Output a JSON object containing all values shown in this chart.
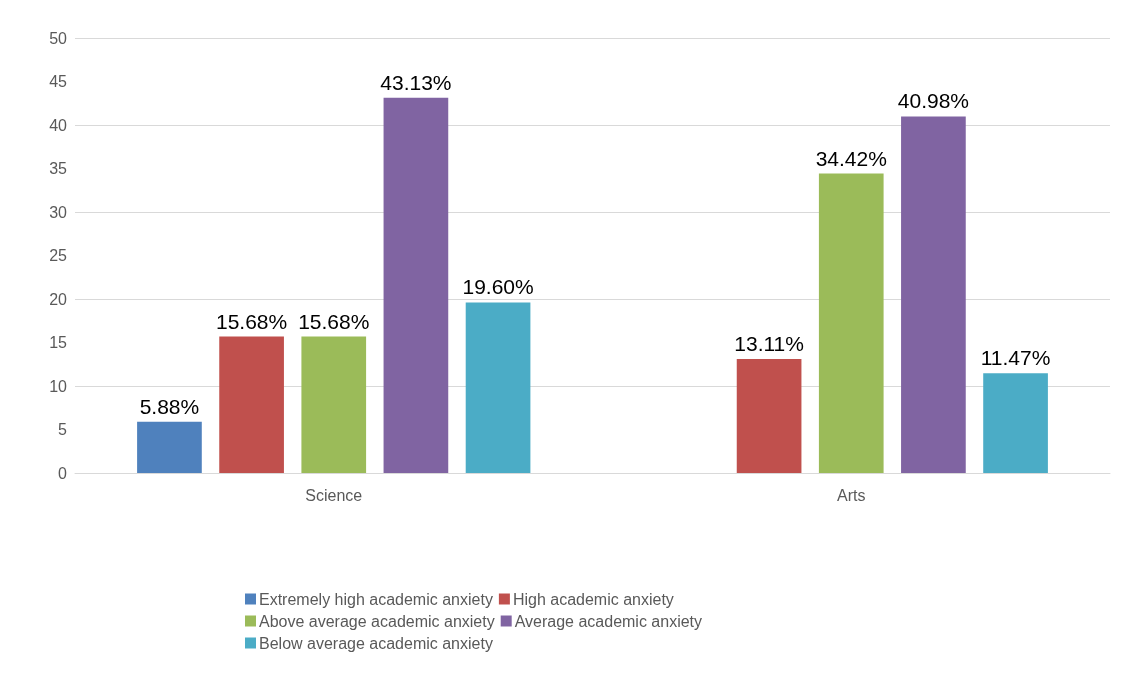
{
  "chart_data": {
    "type": "bar",
    "categories": [
      "Science",
      "Arts"
    ],
    "series": [
      {
        "name": "Extremely high academic anxiety",
        "color": "#4f81bd",
        "values": [
          5.88,
          null
        ],
        "value_labels": [
          "5.88%",
          null
        ]
      },
      {
        "name": "High academic anxiety",
        "color": "#c0504d",
        "values": [
          15.68,
          13.11
        ],
        "value_labels": [
          "15.68%",
          "13.11%"
        ]
      },
      {
        "name": "Above average academic anxiety",
        "color": "#9bbb59",
        "values": [
          15.68,
          34.42
        ],
        "value_labels": [
          "15.68%",
          "34.42%"
        ]
      },
      {
        "name": "Average academic anxiety",
        "color": "#8064a2",
        "values": [
          43.13,
          40.98
        ],
        "value_labels": [
          "43.13%",
          "40.98%"
        ]
      },
      {
        "name": "Below average academic anxiety",
        "color": "#4bacc6",
        "values": [
          19.6,
          11.47
        ],
        "value_labels": [
          "19.60%",
          "11.47%"
        ]
      }
    ],
    "ylim": [
      0,
      50
    ],
    "yticks": [
      0,
      5,
      10,
      15,
      20,
      25,
      30,
      35,
      40,
      45,
      50
    ],
    "grid": "y",
    "legend": "bottom"
  }
}
